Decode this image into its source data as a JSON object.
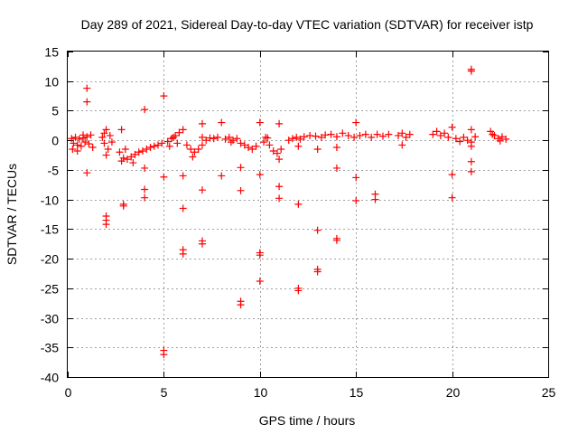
{
  "chart_data": {
    "type": "scatter",
    "title": "Day 289 of 2021, Sidereal Day-to-day VTEC variation (SDTVAR) for receiver istp",
    "xlabel": "GPS time / hours",
    "ylabel": "SDTVAR / TECUs",
    "xlim": [
      0,
      25
    ],
    "ylim": [
      -40,
      15
    ],
    "xticks": [
      0,
      5,
      10,
      15,
      20,
      25
    ],
    "yticks": [
      15,
      10,
      5,
      0,
      -5,
      -10,
      -15,
      -20,
      -25,
      -30,
      -35,
      -40
    ],
    "grid": true,
    "marker": "+",
    "color": "#ff0000",
    "series": [
      {
        "name": "SDTVAR",
        "points": [
          [
            0.2,
            0.3
          ],
          [
            0.3,
            -0.5
          ],
          [
            0.4,
            0.5
          ],
          [
            0.5,
            -0.8
          ],
          [
            0.6,
            0.2
          ],
          [
            0.7,
            -1.0
          ],
          [
            0.8,
            0.4
          ],
          [
            0.9,
            -0.3
          ],
          [
            1.0,
            0.6
          ],
          [
            1.1,
            -0.6
          ],
          [
            1.2,
            0.9
          ],
          [
            1.3,
            -1.2
          ],
          [
            0.25,
            -1.5
          ],
          [
            0.5,
            -1.8
          ],
          [
            0.8,
            0.9
          ],
          [
            1.0,
            8.8
          ],
          [
            1.0,
            6.5
          ],
          [
            1.0,
            -5.5
          ],
          [
            1.8,
            0.5
          ],
          [
            1.9,
            -0.5
          ],
          [
            2.0,
            1.8
          ],
          [
            2.1,
            -1.5
          ],
          [
            2.2,
            0.8
          ],
          [
            2.3,
            -0.3
          ],
          [
            2.0,
            -2.5
          ],
          [
            1.9,
            1.2
          ],
          [
            2.0,
            -12.8
          ],
          [
            2.0,
            -13.5
          ],
          [
            2.0,
            -14.2
          ],
          [
            2.8,
            1.8
          ],
          [
            2.8,
            -3.5
          ],
          [
            2.9,
            -10.8
          ],
          [
            2.9,
            -11.1
          ],
          [
            2.7,
            -2.0
          ],
          [
            2.9,
            -3.0
          ],
          [
            3.1,
            -3.2
          ],
          [
            3.3,
            -2.8
          ],
          [
            3.5,
            -2.4
          ],
          [
            3.7,
            -2.0
          ],
          [
            3.9,
            -1.8
          ],
          [
            4.1,
            -1.5
          ],
          [
            4.3,
            -1.2
          ],
          [
            4.5,
            -1.0
          ],
          [
            4.7,
            -0.8
          ],
          [
            4.9,
            -0.5
          ],
          [
            3.0,
            -1.5
          ],
          [
            3.4,
            -3.8
          ],
          [
            4.0,
            5.2
          ],
          [
            4.0,
            -4.7
          ],
          [
            4.0,
            -8.3
          ],
          [
            4.0,
            -9.7
          ],
          [
            5.0,
            7.5
          ],
          [
            5.0,
            -6.2
          ],
          [
            5.0,
            -35.5
          ],
          [
            5.0,
            -36.2
          ],
          [
            5.2,
            -0.2
          ],
          [
            5.4,
            0.3
          ],
          [
            5.6,
            0.8
          ],
          [
            5.8,
            1.3
          ],
          [
            6.0,
            1.8
          ],
          [
            5.3,
            -1.0
          ],
          [
            5.5,
            0.5
          ],
          [
            5.7,
            -0.5
          ],
          [
            6.0,
            -6.0
          ],
          [
            6.0,
            -11.5
          ],
          [
            6.0,
            -18.5
          ],
          [
            6.0,
            -19.2
          ],
          [
            6.2,
            -0.8
          ],
          [
            6.4,
            -1.5
          ],
          [
            6.6,
            -2.0
          ],
          [
            6.8,
            -1.5
          ],
          [
            7.0,
            -0.8
          ],
          [
            7.2,
            0.0
          ],
          [
            7.4,
            0.4
          ],
          [
            7.6,
            0.3
          ],
          [
            7.8,
            0.5
          ],
          [
            6.5,
            -2.8
          ],
          [
            7.0,
            0.5
          ],
          [
            7.0,
            2.8
          ],
          [
            7.0,
            -8.4
          ],
          [
            7.0,
            -17.0
          ],
          [
            7.0,
            -17.5
          ],
          [
            8.0,
            3.0
          ],
          [
            8.0,
            -6.0
          ],
          [
            8.2,
            0.2
          ],
          [
            8.4,
            0.5
          ],
          [
            8.6,
            0.0
          ],
          [
            8.8,
            0.3
          ],
          [
            9.0,
            -0.5
          ],
          [
            9.2,
            -0.8
          ],
          [
            9.4,
            -1.2
          ],
          [
            9.6,
            -1.5
          ],
          [
            9.8,
            -1.0
          ],
          [
            8.5,
            -0.3
          ],
          [
            9.0,
            -4.6
          ],
          [
            9.0,
            -8.5
          ],
          [
            9.0,
            -27.2
          ],
          [
            9.0,
            -27.8
          ],
          [
            10.0,
            3.0
          ],
          [
            10.0,
            -5.8
          ],
          [
            10.0,
            -19.0
          ],
          [
            10.0,
            -19.4
          ],
          [
            10.0,
            -23.8
          ],
          [
            10.2,
            -0.3
          ],
          [
            10.4,
            0.4
          ],
          [
            10.5,
            -0.8
          ],
          [
            10.7,
            -1.8
          ],
          [
            10.9,
            -2.2
          ],
          [
            11.1,
            -1.5
          ],
          [
            10.3,
            0.5
          ],
          [
            11.0,
            2.8
          ],
          [
            11.0,
            -3.2
          ],
          [
            11.0,
            -7.8
          ],
          [
            11.0,
            -9.8
          ],
          [
            11.5,
            0.0
          ],
          [
            11.7,
            0.3
          ],
          [
            11.9,
            0.5
          ],
          [
            12.1,
            0.2
          ],
          [
            12.3,
            0.6
          ],
          [
            12.6,
            0.8
          ],
          [
            12.9,
            0.7
          ],
          [
            13.2,
            0.5
          ],
          [
            12.0,
            -1.0
          ],
          [
            12.0,
            -10.8
          ],
          [
            12.0,
            -25.0
          ],
          [
            12.0,
            -25.4
          ],
          [
            13.0,
            -1.5
          ],
          [
            13.0,
            -15.2
          ],
          [
            13.0,
            -21.8
          ],
          [
            13.0,
            -22.2
          ],
          [
            13.4,
            0.9
          ],
          [
            13.7,
            1.0
          ],
          [
            14.0,
            0.6
          ],
          [
            14.3,
            1.2
          ],
          [
            14.6,
            0.8
          ],
          [
            14.9,
            0.5
          ],
          [
            15.2,
            0.8
          ],
          [
            15.5,
            1.0
          ],
          [
            15.8,
            0.5
          ],
          [
            16.1,
            1.0
          ],
          [
            16.4,
            0.7
          ],
          [
            16.7,
            1.0
          ],
          [
            14.0,
            -1.2
          ],
          [
            14.0,
            -4.7
          ],
          [
            14.0,
            -16.6
          ],
          [
            14.0,
            -16.9
          ],
          [
            15.0,
            3.0
          ],
          [
            15.0,
            -6.3
          ],
          [
            15.0,
            -10.2
          ],
          [
            16.0,
            -9.1
          ],
          [
            16.0,
            -10.0
          ],
          [
            17.2,
            0.8
          ],
          [
            17.4,
            1.2
          ],
          [
            17.6,
            0.5
          ],
          [
            17.8,
            1.0
          ],
          [
            17.4,
            -0.8
          ],
          [
            19.0,
            1.0
          ],
          [
            19.2,
            1.5
          ],
          [
            19.4,
            0.8
          ],
          [
            19.6,
            1.2
          ],
          [
            19.8,
            0.5
          ],
          [
            20.0,
            2.2
          ],
          [
            20.2,
            0.3
          ],
          [
            20.4,
            -0.2
          ],
          [
            20.6,
            0.5
          ],
          [
            20.8,
            0.0
          ],
          [
            21.0,
            -0.3
          ],
          [
            21.2,
            0.6
          ],
          [
            20.0,
            -5.8
          ],
          [
            20.0,
            -9.7
          ],
          [
            21.0,
            12.0
          ],
          [
            21.0,
            11.7
          ],
          [
            21.0,
            1.8
          ],
          [
            21.0,
            -1.0
          ],
          [
            21.0,
            -3.6
          ],
          [
            21.0,
            -5.3
          ],
          [
            22.0,
            1.5
          ],
          [
            22.2,
            0.8
          ],
          [
            22.4,
            0.3
          ],
          [
            22.6,
            0.6
          ],
          [
            22.8,
            0.2
          ],
          [
            22.1,
            1.0
          ],
          [
            22.5,
            -0.1
          ]
        ]
      }
    ]
  }
}
